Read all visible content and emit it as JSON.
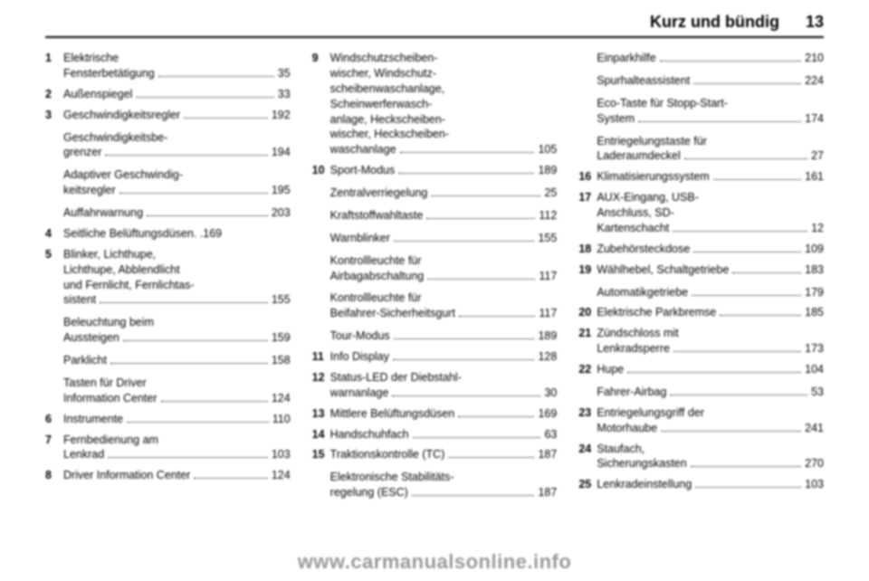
{
  "header": {
    "chapter": "Kurz und bündig",
    "page": "13"
  },
  "watermark": "www.carmanualsonline.info",
  "columns": [
    [
      {
        "num": "1",
        "labelLines": [
          "Elektrische",
          "Fensterbetätigung"
        ],
        "page": "35"
      },
      {
        "num": "2",
        "labelLines": [
          "Außenspiegel"
        ],
        "page": "33"
      },
      {
        "num": "3",
        "labelLines": [
          "Geschwindigkeitsregler"
        ],
        "page": "192",
        "subs": [
          {
            "labelLines": [
              "Geschwindigkeitsbe-",
              "grenzer"
            ],
            "page": "194"
          },
          {
            "labelLines": [
              "Adaptiver Geschwindig-",
              "keitsregler"
            ],
            "page": "195"
          },
          {
            "labelLines": [
              "Auffahrwarnung"
            ],
            "page": "203"
          }
        ]
      },
      {
        "num": "4",
        "labelLines": [
          "Seitliche Belüftungsdüsen"
        ],
        "page": "169",
        "tight": true
      },
      {
        "num": "5",
        "labelLines": [
          "Blinker, Lichthupe,",
          "Lichthupe, Abblendlicht",
          "und Fernlicht, Fernlichtas-",
          "sistent"
        ],
        "page": "155",
        "subs": [
          {
            "labelLines": [
              "Beleuchtung beim",
              "Aussteigen"
            ],
            "page": "159"
          },
          {
            "labelLines": [
              "Parklicht"
            ],
            "page": "158"
          },
          {
            "labelLines": [
              "Tasten für Driver",
              "Information Center"
            ],
            "page": "124"
          }
        ]
      },
      {
        "num": "6",
        "labelLines": [
          "Instrumente"
        ],
        "page": "110"
      },
      {
        "num": "7",
        "labelLines": [
          "Fernbedienung am",
          "Lenkrad"
        ],
        "page": "103"
      },
      {
        "num": "8",
        "labelLines": [
          "Driver Information Center"
        ],
        "page": "124"
      }
    ],
    [
      {
        "num": "9",
        "labelLines": [
          "Windschutzscheiben-",
          "wischer, Windschutz-",
          "scheibenwaschanlage,",
          "Scheinwerferwasch-",
          "anlage, Heckscheiben-",
          "wischer, Heckscheiben-",
          "waschanlage"
        ],
        "page": "105"
      },
      {
        "num": "10",
        "labelLines": [
          "Sport-Modus"
        ],
        "page": "189",
        "subs": [
          {
            "labelLines": [
              "Zentralverriegelung"
            ],
            "page": "25"
          },
          {
            "labelLines": [
              "Kraftstoffwahltaste"
            ],
            "page": "112"
          },
          {
            "labelLines": [
              "Warnblinker"
            ],
            "page": "155"
          },
          {
            "labelLines": [
              "Kontrollleuchte für",
              "Airbagabschaltung"
            ],
            "page": "117"
          },
          {
            "labelLines": [
              "Kontrollleuchte für",
              "Beifahrer-Sicherheitsgurt"
            ],
            "page": "117"
          },
          {
            "labelLines": [
              "Tour-Modus"
            ],
            "page": "189"
          }
        ]
      },
      {
        "num": "11",
        "labelLines": [
          "Info Display"
        ],
        "page": "128"
      },
      {
        "num": "12",
        "labelLines": [
          "Status-LED der Diebstahl-",
          "warnanlage"
        ],
        "page": "30"
      },
      {
        "num": "13",
        "labelLines": [
          "Mittlere Belüftungsdüsen"
        ],
        "page": "169"
      },
      {
        "num": "14",
        "labelLines": [
          "Handschuhfach"
        ],
        "page": "63"
      },
      {
        "num": "15",
        "labelLines": [
          "Traktionskontrolle (TC)"
        ],
        "page": "187",
        "subs": [
          {
            "labelLines": [
              "Elektronische Stabilitäts-",
              "regelung (ESC)"
            ],
            "page": "187"
          }
        ]
      }
    ],
    [
      {
        "num": "",
        "labelLines": [
          "Einparkhilfe"
        ],
        "page": "210",
        "subs": [
          {
            "labelLines": [
              "Spurhalteassistent"
            ],
            "page": "224"
          },
          {
            "labelLines": [
              "Eco-Taste für Stopp-Start-",
              "System"
            ],
            "page": "174"
          },
          {
            "labelLines": [
              "Entriegelungstaste für",
              "Laderaumdeckel"
            ],
            "page": "27"
          }
        ]
      },
      {
        "num": "16",
        "labelLines": [
          "Klimatisierungssystem"
        ],
        "page": "161"
      },
      {
        "num": "17",
        "labelLines": [
          "AUX-Eingang, USB-",
          "Anschluss, SD-",
          "Kartenschacht"
        ],
        "page": "12"
      },
      {
        "num": "18",
        "labelLines": [
          "Zubehörsteckdose"
        ],
        "page": "109"
      },
      {
        "num": "19",
        "labelLines": [
          "Wählhebel, Schaltgetriebe"
        ],
        "page": "183",
        "subs": [
          {
            "labelLines": [
              "Automatikgetriebe"
            ],
            "page": "179"
          }
        ]
      },
      {
        "num": "20",
        "labelLines": [
          "Elektrische Parkbremse"
        ],
        "page": "185"
      },
      {
        "num": "21",
        "labelLines": [
          "Zündschloss mit",
          "Lenkradsperre"
        ],
        "page": "173"
      },
      {
        "num": "22",
        "labelLines": [
          "Hupe"
        ],
        "page": "104",
        "subs": [
          {
            "labelLines": [
              "Fahrer-Airbag"
            ],
            "page": "53"
          }
        ]
      },
      {
        "num": "23",
        "labelLines": [
          "Entriegelungsgriff der",
          "Motorhaube"
        ],
        "page": "241"
      },
      {
        "num": "24",
        "labelLines": [
          "Staufach,",
          "Sicherungskasten"
        ],
        "page": "270"
      },
      {
        "num": "25",
        "labelLines": [
          "Lenkradeinstellung"
        ],
        "page": "103"
      }
    ]
  ]
}
